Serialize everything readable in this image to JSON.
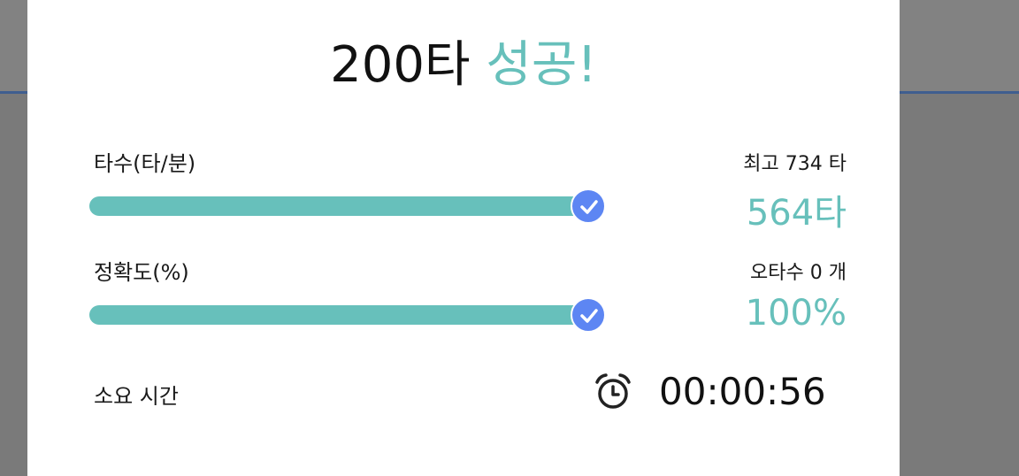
{
  "result": {
    "title_count": "200타",
    "title_status": "성공!",
    "accent_color": "#67c0bb",
    "knob_color": "#5d86f3"
  },
  "speed": {
    "label": "타수(타/분)",
    "best": "최고 734 타",
    "value": "564타",
    "progress": 1.0
  },
  "accuracy": {
    "label": "정확도(%)",
    "typos": "오타수 0 개",
    "value": "100%",
    "progress": 1.0
  },
  "elapsed": {
    "label": "소요 시간",
    "icon": "alarm-clock-icon",
    "value": "00:00:56"
  }
}
